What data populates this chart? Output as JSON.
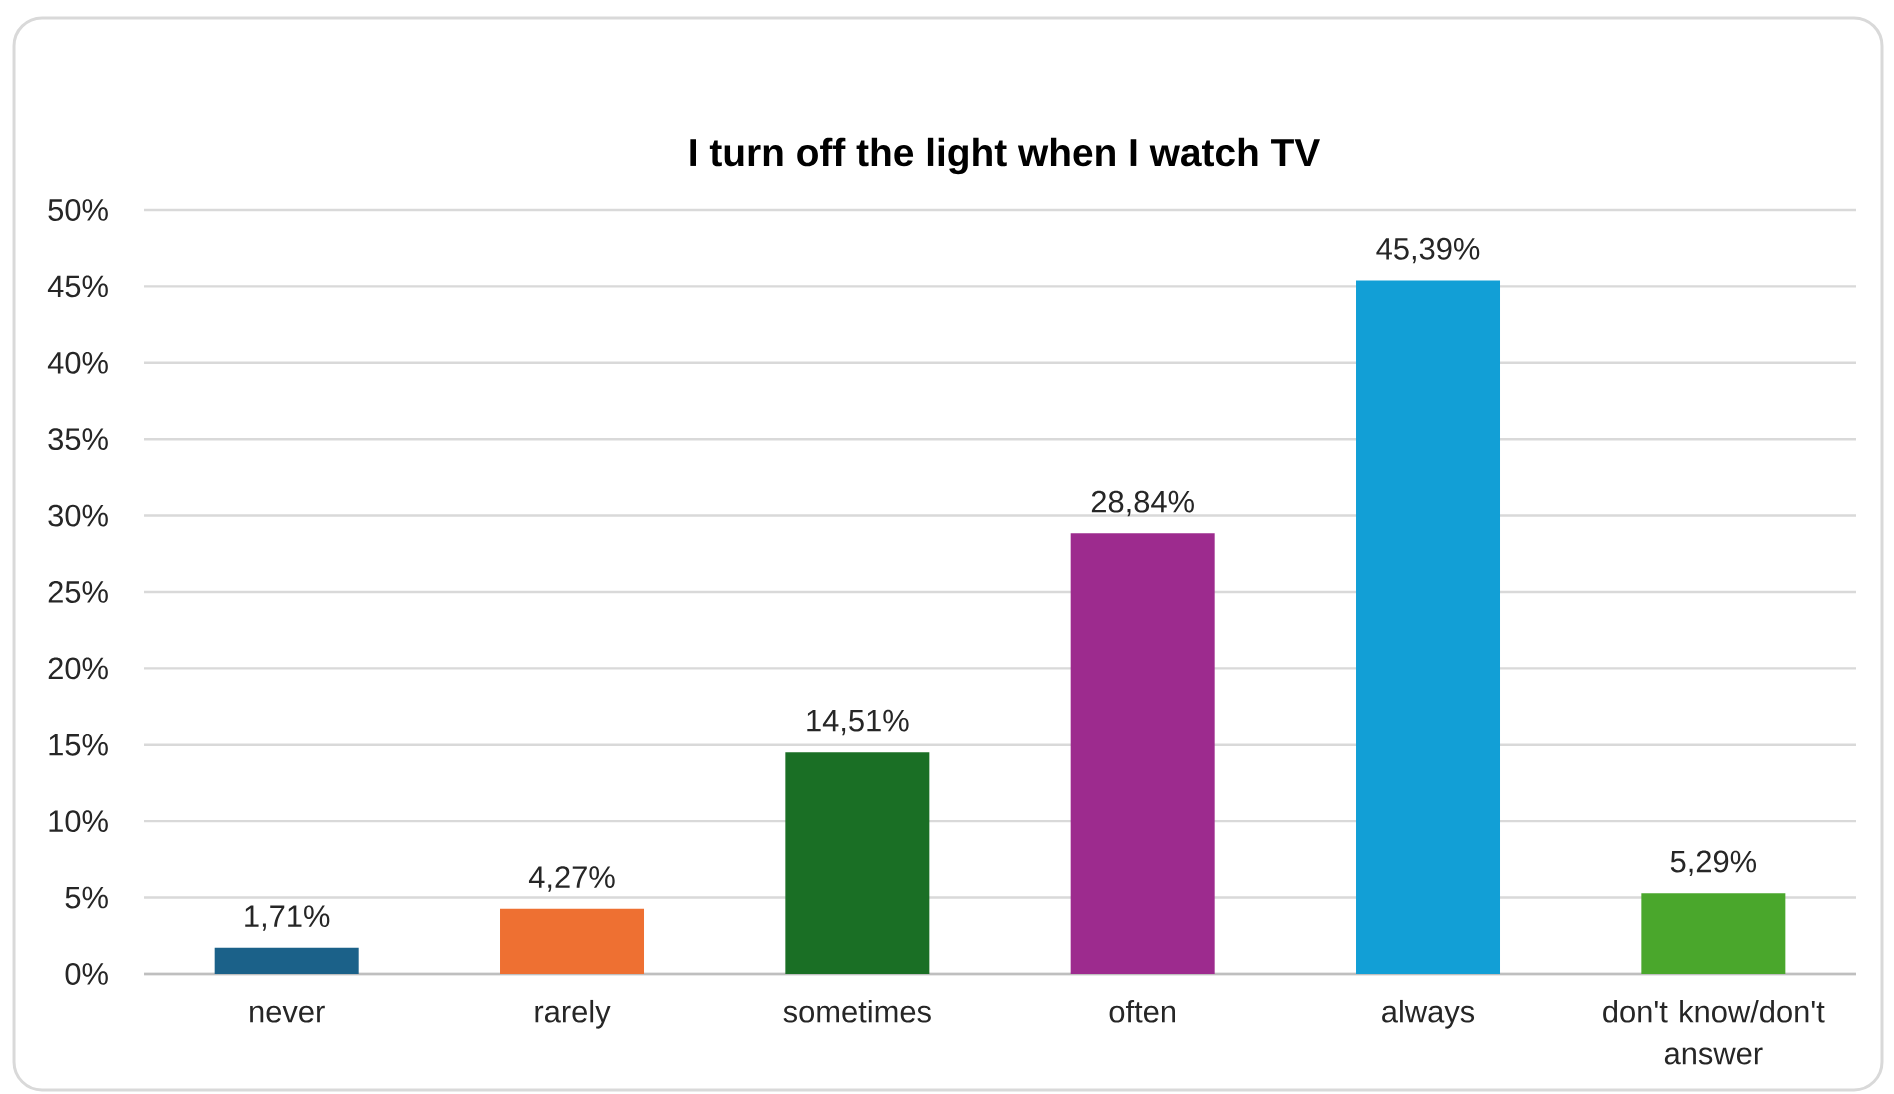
{
  "chart_data": {
    "type": "bar",
    "title": "I turn off the light when I watch TV",
    "categories": [
      "never",
      "rarely",
      "sometimes",
      "often",
      "always",
      "don't know/don't answer"
    ],
    "values": [
      1.71,
      4.27,
      14.51,
      28.84,
      45.39,
      5.29
    ],
    "value_labels": [
      "1,71%",
      "4,27%",
      "14,51%",
      "28,84%",
      "45,39%",
      "5,29%"
    ],
    "colors": [
      "#1b6189",
      "#ee7032",
      "#1a6f25",
      "#9d2b8e",
      "#129fd6",
      "#4aa72c"
    ],
    "ylim": [
      0,
      50
    ],
    "yticks": [
      {
        "value": 0,
        "label": "0%"
      },
      {
        "value": 5,
        "label": "5%"
      },
      {
        "value": 10,
        "label": "10%"
      },
      {
        "value": 15,
        "label": "15%"
      },
      {
        "value": 20,
        "label": "20%"
      },
      {
        "value": 25,
        "label": "25%"
      },
      {
        "value": 30,
        "label": "30%"
      },
      {
        "value": 35,
        "label": "35%"
      },
      {
        "value": 40,
        "label": "40%"
      },
      {
        "value": 45,
        "label": "45%"
      },
      {
        "value": 50,
        "label": "50%"
      }
    ],
    "grid": "y"
  }
}
